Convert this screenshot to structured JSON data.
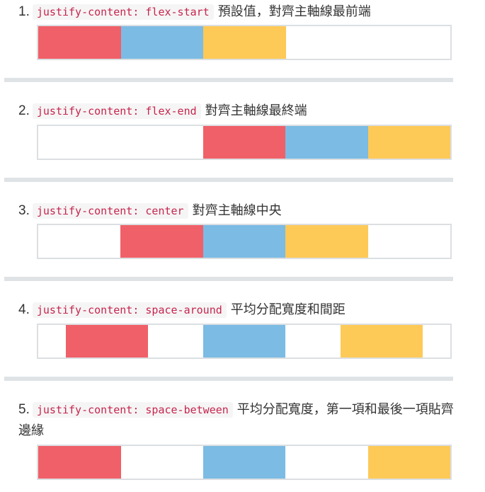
{
  "colors": {
    "red": "#f06068",
    "blue": "#7bbbe4",
    "yellow": "#fdc957"
  },
  "items": [
    {
      "number": "1.",
      "code": "justify-content: flex-start",
      "description": "預設值，對齊主軸線最前端",
      "justify": "flex-start"
    },
    {
      "number": "2.",
      "code": "justify-content: flex-end",
      "description": "對齊主軸線最終端",
      "justify": "flex-end"
    },
    {
      "number": "3.",
      "code": "justify-content: center",
      "description": "對齊主軸線中央",
      "justify": "center"
    },
    {
      "number": "4.",
      "code": "justify-content: space-around",
      "description": "平均分配寬度和間距",
      "justify": "space-around"
    },
    {
      "number": "5.",
      "code": "justify-content: space-between",
      "description": "平均分配寬度，第一項和最後一項貼齊邊緣",
      "justify": "space-between"
    }
  ]
}
